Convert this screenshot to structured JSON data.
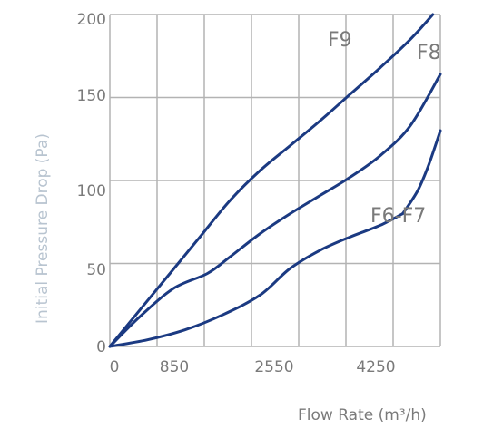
{
  "chart_data": {
    "type": "line",
    "xlabel": "Flow Rate (m³/h)",
    "ylabel": "Initial Pressure Drop (Pa)",
    "xlim": [
      0,
      4400
    ],
    "ylim": [
      0,
      200
    ],
    "x_ticks": [
      "0",
      "850",
      "2550",
      "4250"
    ],
    "y_ticks": [
      "0",
      "50",
      "100",
      "150",
      "200"
    ],
    "grid": true,
    "colors": {
      "line": "#1b3a82",
      "grid": "#b3b3b3",
      "tick_text": "#7a7a7a",
      "ylabel_text": "#b8c4d0"
    },
    "series": [
      {
        "name": "F9",
        "x": [
          0,
          400,
          800,
          1200,
          1600,
          2000,
          2400,
          2800,
          3200,
          3600,
          4000,
          4300
        ],
        "y": [
          0,
          22,
          44,
          66,
          88,
          106,
          121,
          136,
          152,
          168,
          185,
          200
        ]
      },
      {
        "name": "F8",
        "x": [
          0,
          400,
          850,
          1300,
          1600,
          2000,
          2400,
          2800,
          3200,
          3600,
          4000,
          4400
        ],
        "y": [
          0,
          18,
          35,
          44,
          54,
          68,
          80,
          91,
          102,
          115,
          133,
          164
        ]
      },
      {
        "name": "F6-F7",
        "x": [
          0,
          500,
          1000,
          1500,
          2000,
          2400,
          2800,
          3200,
          3600,
          3900
        ],
        "y": [
          0,
          4,
          10,
          19,
          31,
          47,
          58,
          66,
          73,
          80
        ]
      },
      {
        "name": "",
        "x": [
          3900,
          4100,
          4250,
          4400
        ],
        "y": [
          80,
          94,
          110,
          130
        ]
      }
    ]
  }
}
